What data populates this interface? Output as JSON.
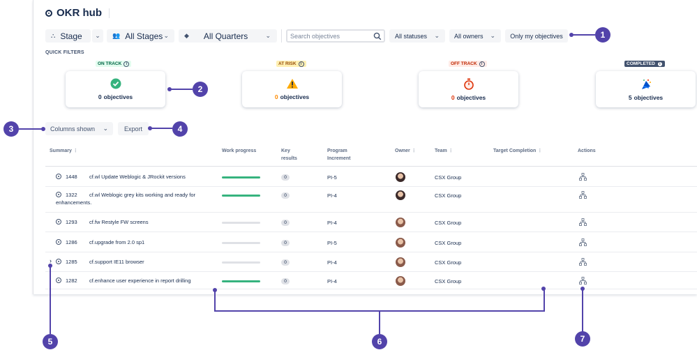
{
  "app": {
    "title": "OKR hub"
  },
  "toolbar": {
    "stage_label": "Stage",
    "all_stages": "All Stages",
    "all_quarters": "All Quarters",
    "search_placeholder": "Search objectives",
    "all_statuses": "All statuses",
    "all_owners": "All owners",
    "only_mine": "Only my objectives"
  },
  "quick_filters": {
    "label": "QUICK FILTERS",
    "cards": [
      {
        "status": "ON TRACK",
        "count": "0",
        "unit": "objectives",
        "color": "#006644",
        "bg": "#e3fcef",
        "icon": "check-circle-icon"
      },
      {
        "status": "AT RISK",
        "count": "0",
        "unit": "objectives",
        "color": "#974f0c",
        "bg": "#fff0b3",
        "icon": "warning-icon"
      },
      {
        "status": "OFF TRACK",
        "count": "0",
        "unit": "objectives",
        "color": "#bf2600",
        "bg": "#ffebe6",
        "icon": "stopwatch-icon"
      },
      {
        "status": "COMPLETED",
        "count": "5",
        "unit": "objectives",
        "color": "#ffffff",
        "bg": "#42526e",
        "icon": "party-popper-icon"
      }
    ]
  },
  "actions": {
    "columns_shown": "Columns shown",
    "export": "Export"
  },
  "table": {
    "headers": {
      "summary": "Summary",
      "work_progress": "Work progress",
      "key_results": "Key\nresults",
      "program_increment": "Program\nIncrement",
      "owner": "Owner",
      "team": "Team",
      "target_completion": "Target Completion",
      "actions": "Actions"
    },
    "rows": [
      {
        "id": "1448",
        "summary": "cf.wl Update Weblogic & JRockit versions",
        "progress": 1.0,
        "kr": "0",
        "pi": "PI-5",
        "team": "CSX Group",
        "avatar": "#3b2a2a"
      },
      {
        "id": "1322",
        "summary": "cf.wl Weblogic grey kits working and ready for",
        "summary2": "enhancements.",
        "progress": 1.0,
        "kr": "0",
        "pi": "PI-4",
        "team": "CSX Group",
        "avatar": "#3b2a2a"
      },
      {
        "id": "1293",
        "summary": "cf.fw Restyle FW screens",
        "progress": 0.0,
        "kr": "0",
        "pi": "PI-4",
        "team": "CSX Group",
        "avatar": "#8a5a4a"
      },
      {
        "id": "1286",
        "summary": "cf.upgrade from 2.0 sp1",
        "progress": 0.0,
        "kr": "0",
        "pi": "PI-5",
        "team": "CSX Group",
        "avatar": "#8a5a4a"
      },
      {
        "id": "1285",
        "summary": "cf.support IE11 browser",
        "progress": 0.0,
        "kr": "0",
        "pi": "PI-4",
        "team": "CSX Group",
        "avatar": "#8a5a4a"
      },
      {
        "id": "1282",
        "summary": "cf.enhance user experience in report drilling",
        "progress": 1.0,
        "kr": "0",
        "pi": "PI-4",
        "team": "CSX Group",
        "avatar": "#8a5a4a"
      }
    ]
  },
  "callouts": [
    "1",
    "2",
    "3",
    "4",
    "5",
    "6",
    "7"
  ],
  "colors": {
    "accent": "#5243aa",
    "progress": "#36b37e"
  }
}
